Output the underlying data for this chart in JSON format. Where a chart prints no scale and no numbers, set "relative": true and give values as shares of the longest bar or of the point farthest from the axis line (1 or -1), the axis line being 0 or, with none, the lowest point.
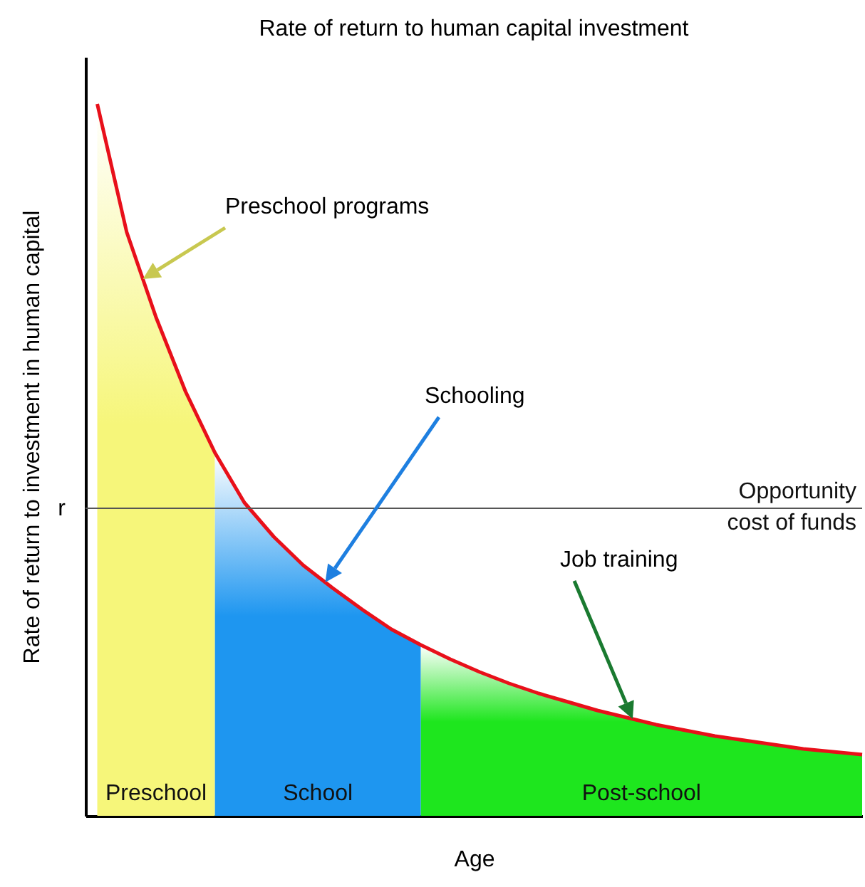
{
  "chart_data": {
    "type": "line",
    "title": "Rate of return to human capital investment",
    "xlabel": "Age",
    "ylabel": "Rate of return to investment in human capital",
    "relative": true,
    "grid": false,
    "categories": [
      null,
      null,
      null,
      null,
      null,
      null,
      null,
      null,
      null,
      null,
      null,
      null,
      null,
      null,
      null,
      null,
      null,
      null,
      null,
      null,
      null,
      null,
      null,
      null,
      null,
      null,
      null
    ],
    "series": [
      {
        "name": "Preschool",
        "type": "area",
        "color": "#f6f67a",
        "values": [
          1,
          0.82,
          0.7,
          0.596,
          0.51,
          null,
          null,
          null,
          null,
          null,
          null,
          null,
          null,
          null,
          null,
          null,
          null,
          null,
          null,
          null,
          null,
          null,
          null,
          null,
          null,
          null,
          null
        ]
      },
      {
        "name": "School",
        "type": "area",
        "color": "#1e96f0",
        "values": [
          null,
          null,
          null,
          null,
          0.51,
          0.44,
          0.392,
          0.352,
          0.32,
          0.29,
          0.262,
          0.24,
          null,
          null,
          null,
          null,
          null,
          null,
          null,
          null,
          null,
          null,
          null,
          null,
          null,
          null,
          null
        ]
      },
      {
        "name": "Post-school",
        "type": "area",
        "color": "#1ee61e",
        "values": [
          null,
          null,
          null,
          null,
          null,
          null,
          null,
          null,
          null,
          null,
          null,
          0.24,
          0.22,
          0.202,
          0.186,
          0.172,
          0.16,
          0.148,
          0.138,
          0.128,
          0.12,
          0.112,
          0.106,
          0.1,
          0.094,
          0.09,
          0.086
        ]
      },
      {
        "color": "#e8101a",
        "values": [
          1,
          0.82,
          0.7,
          0.596,
          0.51,
          0.44,
          0.392,
          0.352,
          0.32,
          0.29,
          0.262,
          0.24,
          0.22,
          0.202,
          0.186,
          0.172,
          0.16,
          0.148,
          0.138,
          0.128,
          0.12,
          0.112,
          0.106,
          0.1,
          0.094,
          0.09,
          0.086
        ]
      }
    ],
    "ref_lines": [
      {
        "axis": "y",
        "value": 0.432,
        "label": "Opportunity cost of funds",
        "color": "#555555"
      }
    ],
    "annotations": [
      "Preschool programs",
      "Schooling",
      "Job training",
      "r"
    ]
  }
}
